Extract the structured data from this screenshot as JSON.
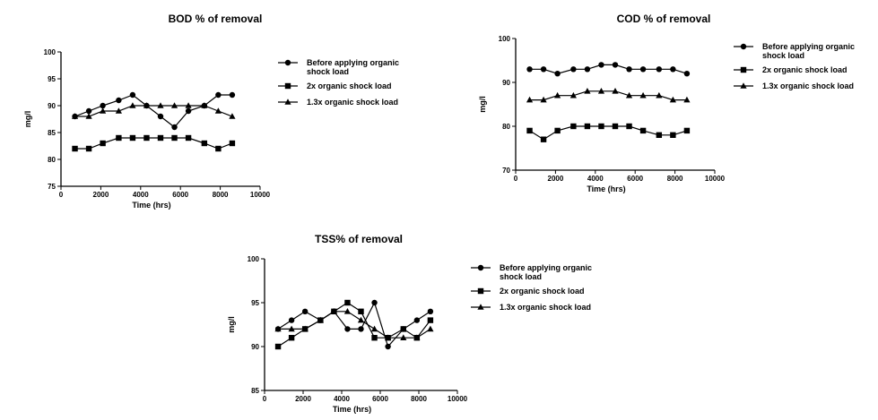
{
  "chart_data": [
    {
      "id": "bod",
      "type": "line",
      "title": "BOD % of removal",
      "xlabel": "Time (hrs)",
      "ylabel": "mg/l",
      "xlim": [
        0,
        10000
      ],
      "ylim": [
        75,
        100
      ],
      "xticks": [
        0,
        2000,
        4000,
        6000,
        8000,
        10000
      ],
      "yticks": [
        75,
        80,
        85,
        90,
        95,
        100
      ],
      "x": [
        700,
        1400,
        2100,
        2900,
        3600,
        4300,
        5000,
        5700,
        6400,
        7200,
        7900,
        8600
      ],
      "grid": false,
      "legend_position": "right",
      "series": [
        {
          "name": "Before applying organic\nshock load",
          "marker": "circle",
          "values": [
            88,
            89,
            90,
            91,
            92,
            90,
            88,
            86,
            89,
            90,
            92,
            92
          ]
        },
        {
          "name": "2x organic shock load",
          "marker": "square",
          "values": [
            82,
            82,
            83,
            84,
            84,
            84,
            84,
            84,
            84,
            83,
            82,
            83
          ]
        },
        {
          "name": "1.3x organic shock load",
          "marker": "triangle",
          "values": [
            88,
            88,
            89,
            89,
            90,
            90,
            90,
            90,
            90,
            90,
            89,
            88
          ]
        }
      ]
    },
    {
      "id": "cod",
      "type": "line",
      "title": "COD % of removal",
      "xlabel": "Time (hrs)",
      "ylabel": "mg/l",
      "xlim": [
        0,
        10000
      ],
      "ylim": [
        70,
        100
      ],
      "xticks": [
        0,
        2000,
        4000,
        6000,
        8000,
        10000
      ],
      "yticks": [
        70,
        80,
        90,
        100
      ],
      "x": [
        700,
        1400,
        2100,
        2900,
        3600,
        4300,
        5000,
        5700,
        6400,
        7200,
        7900,
        8600
      ],
      "grid": false,
      "legend_position": "right",
      "series": [
        {
          "name": "Before applying organic\nshock load",
          "marker": "circle",
          "values": [
            93,
            93,
            92,
            93,
            93,
            94,
            94,
            93,
            93,
            93,
            93,
            92
          ]
        },
        {
          "name": "2x organic shock load",
          "marker": "square",
          "values": [
            79,
            77,
            79,
            80,
            80,
            80,
            80,
            80,
            79,
            78,
            78,
            79
          ]
        },
        {
          "name": "1.3x organic shock load",
          "marker": "triangle",
          "values": [
            86,
            86,
            87,
            87,
            88,
            88,
            88,
            87,
            87,
            87,
            86,
            86
          ]
        }
      ]
    },
    {
      "id": "tss",
      "type": "line",
      "title": "TSS% of removal",
      "xlabel": "Time (hrs)",
      "ylabel": "mg/l",
      "xlim": [
        0,
        10000
      ],
      "ylim": [
        85,
        100
      ],
      "xticks": [
        0,
        2000,
        4000,
        6000,
        8000,
        10000
      ],
      "yticks": [
        85,
        90,
        95,
        100
      ],
      "x": [
        700,
        1400,
        2100,
        2900,
        3600,
        4300,
        5000,
        5700,
        6400,
        7200,
        7900,
        8600
      ],
      "grid": false,
      "legend_position": "right",
      "series": [
        {
          "name": "Before applying organic\nshock load",
          "marker": "circle",
          "values": [
            92,
            93,
            94,
            93,
            94,
            92,
            92,
            95,
            90,
            92,
            93,
            94
          ]
        },
        {
          "name": "2x organic shock load",
          "marker": "square",
          "values": [
            90,
            91,
            92,
            93,
            94,
            95,
            94,
            91,
            91,
            92,
            91,
            93
          ]
        },
        {
          "name": "1.3x organic shock load",
          "marker": "triangle",
          "values": [
            92,
            92,
            92,
            93,
            94,
            94,
            93,
            92,
            91,
            91,
            91,
            92
          ]
        }
      ]
    }
  ]
}
